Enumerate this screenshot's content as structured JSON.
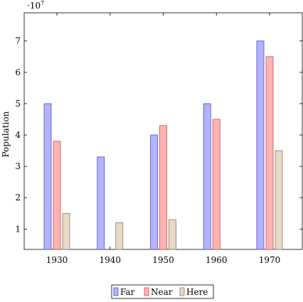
{
  "chart_data": {
    "type": "bar",
    "title": "",
    "xlabel": "",
    "ylabel": "Population",
    "y_multiplier_label": "·10",
    "y_multiplier_exponent": "7",
    "categories": [
      "1930",
      "1940",
      "1950",
      "1960",
      "1970"
    ],
    "series": [
      {
        "name": "Far",
        "color_fill": "#b3b3ff",
        "color_stroke": "#4d4dcc",
        "values": [
          5.0,
          3.3,
          4.0,
          5.0,
          7.0
        ]
      },
      {
        "name": "Near",
        "color_fill": "#ffb3b3",
        "color_stroke": "#cc4d4d",
        "values": [
          3.8,
          0,
          4.3,
          4.5,
          6.5
        ]
      },
      {
        "name": "Here",
        "color_fill": "#e6d9c6",
        "color_stroke": "#8c7a5e",
        "values": [
          1.5,
          1.2,
          1.3,
          0,
          3.5
        ]
      }
    ],
    "ylim": [
      0.35,
      7.9
    ],
    "yticks": [
      1,
      2,
      3,
      4,
      5,
      6,
      7
    ],
    "grid": false,
    "legend_position": "bottom-center"
  }
}
